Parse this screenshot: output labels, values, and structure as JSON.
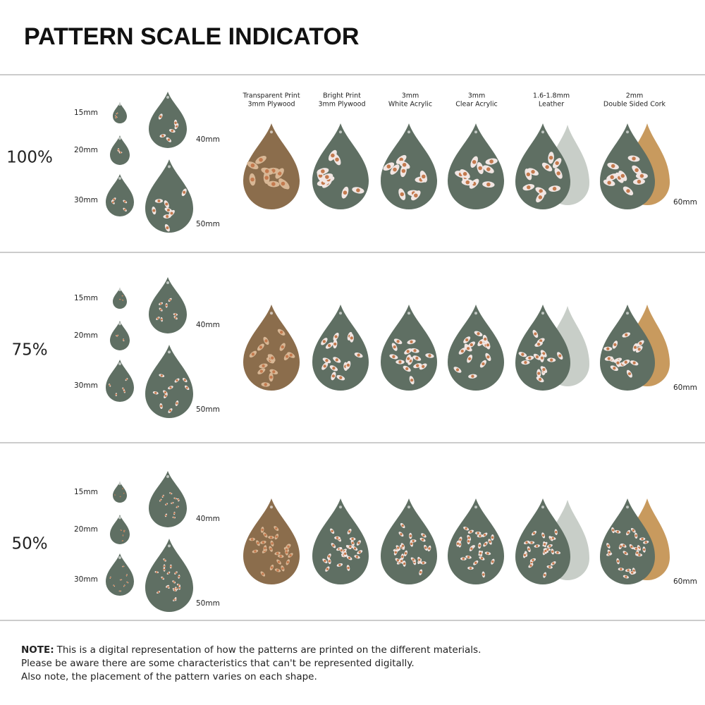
{
  "header": {
    "title": "PATTERN SCALE INDICATOR"
  },
  "materials": [
    {
      "lines": [
        "Transparent Print",
        "3mm Plywood"
      ]
    },
    {
      "lines": [
        "Bright Print",
        "3mm Plywood"
      ]
    },
    {
      "lines": [
        "3mm",
        "White Acrylic"
      ]
    },
    {
      "lines": [
        "3mm",
        "Clear Acrylic"
      ]
    },
    {
      "lines": [
        "1.6-1.8mm",
        "Leather"
      ]
    },
    {
      "lines": [
        "2mm",
        "Double Sided Cork"
      ]
    }
  ],
  "rows": [
    {
      "scale": "100%",
      "sizes": [
        "15mm",
        "20mm",
        "30mm",
        "40mm",
        "50mm"
      ],
      "material_size": "60mm"
    },
    {
      "scale": "75%",
      "sizes": [
        "15mm",
        "20mm",
        "30mm",
        "40mm",
        "50mm"
      ],
      "material_size": "60mm"
    },
    {
      "scale": "50%",
      "sizes": [
        "15mm",
        "20mm",
        "30mm",
        "40mm",
        "50mm"
      ],
      "material_size": "60mm"
    }
  ],
  "note": {
    "label": "NOTE:",
    "lines": [
      "This is a digital representation of how the patterns are printed on the different materials.",
      "Please be aware there are some characteristics that can't be represented digitally.",
      "Also note, the placement of the pattern varies on each shape."
    ]
  }
}
